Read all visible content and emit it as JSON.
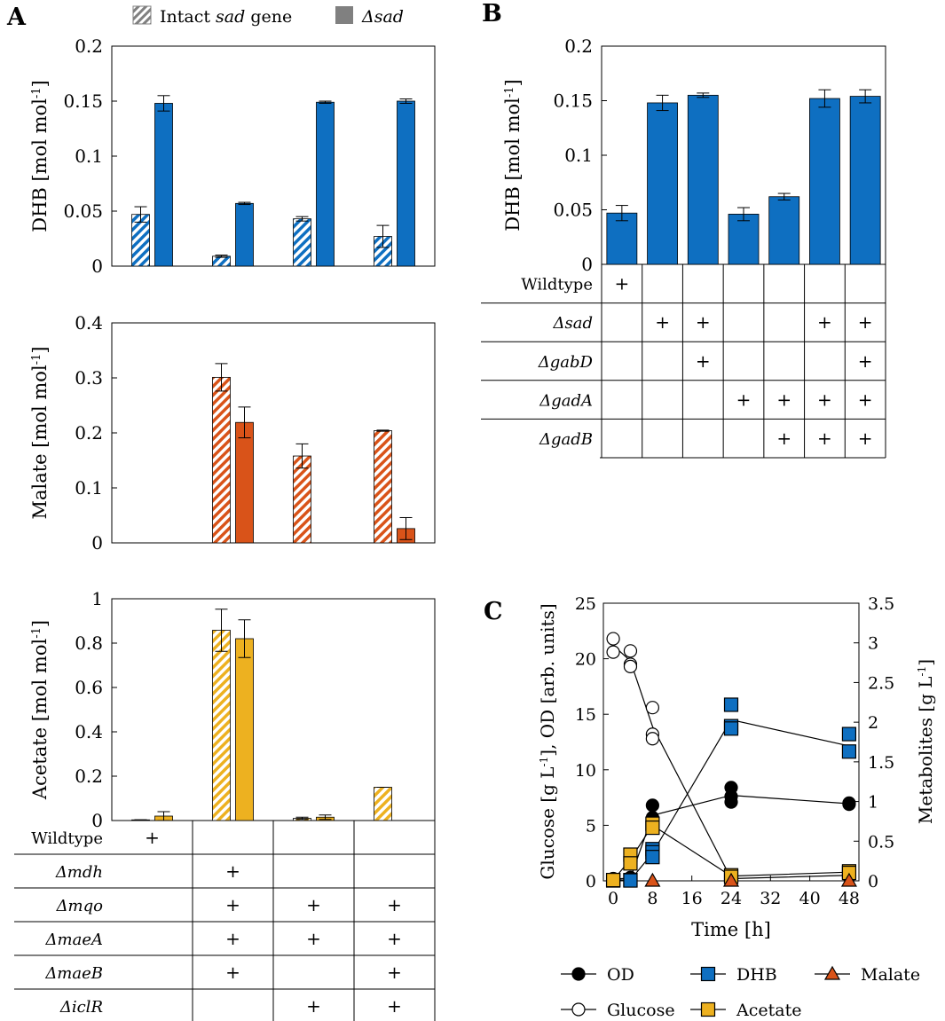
{
  "colors": {
    "dhb": "#0E6FC1",
    "malate": "#D95319",
    "acetate": "#EDB120",
    "od_marker": "#000000",
    "glucose_marker": "#ffffff",
    "legend_gray": "#808080"
  },
  "panel_labels": {
    "a": "A",
    "b": "B",
    "c": "C"
  },
  "legend_a": {
    "intact": "Intact ",
    "intact_italic": "sad",
    "intact_suffix": " gene",
    "deleted": "Δsad"
  },
  "chart_data": [
    {
      "id": "A-DHB",
      "type": "bar",
      "ylabel": "DHB [mol mol",
      "ylabel_sup": "-1",
      "ylabel_end": "]",
      "ylim": [
        0,
        0.2
      ],
      "yticks": [
        "0",
        "0.05",
        "0.1",
        "0.15",
        "0.2"
      ],
      "ytick_values": [
        0,
        0.05,
        0.1,
        0.15,
        0.2
      ],
      "series": [
        {
          "name": "Intact sad gene",
          "pattern": "hatched",
          "values": [
            0.047,
            0.009,
            0.043,
            0.027
          ],
          "errors": [
            0.007,
            0.001,
            0.002,
            0.01
          ]
        },
        {
          "name": "Δsad",
          "pattern": "solid",
          "values": [
            0.148,
            0.057,
            0.149,
            0.15
          ],
          "errors": [
            0.007,
            0.001,
            0.001,
            0.002
          ]
        }
      ]
    },
    {
      "id": "A-Malate",
      "type": "bar",
      "ylabel": "Malate [mol mol",
      "ylabel_sup": "-1",
      "ylabel_end": "]",
      "ylim": [
        0,
        0.4
      ],
      "yticks": [
        "0",
        "0.1",
        "0.2",
        "0.3",
        "0.4"
      ],
      "ytick_values": [
        0,
        0.1,
        0.2,
        0.3,
        0.4
      ],
      "series": [
        {
          "name": "Intact sad gene",
          "pattern": "hatched",
          "values": [
            0,
            0.301,
            0.158,
            0.204
          ],
          "errors": [
            0,
            0.025,
            0.022,
            0.001
          ]
        },
        {
          "name": "Δsad",
          "pattern": "solid",
          "values": [
            0,
            0.219,
            0,
            0.026
          ],
          "errors": [
            0,
            0.028,
            0,
            0.02
          ]
        }
      ]
    },
    {
      "id": "A-Acetate",
      "type": "bar",
      "ylabel": "Acetate [mol mol",
      "ylabel_sup": "-1",
      "ylabel_end": "]",
      "ylim": [
        0,
        1
      ],
      "yticks": [
        "0",
        "0.2",
        "0.4",
        "0.6",
        "0.8",
        "1"
      ],
      "ytick_values": [
        0,
        0.2,
        0.4,
        0.6,
        0.8,
        1
      ],
      "series": [
        {
          "name": "Intact sad gene",
          "pattern": "hatched",
          "values": [
            0.003,
            0.858,
            0.01,
            0.15
          ],
          "errors": [
            0,
            0.095,
            0.005,
            0
          ]
        },
        {
          "name": "Δsad",
          "pattern": "solid",
          "values": [
            0.02,
            0.82,
            0.015,
            0
          ],
          "errors": [
            0.02,
            0.085,
            0.01,
            0
          ]
        }
      ]
    },
    {
      "id": "B-DHB",
      "type": "bar",
      "ylabel": "DHB [mol mol",
      "ylabel_sup": "-1",
      "ylabel_end": "]",
      "ylim": [
        0,
        0.2
      ],
      "yticks": [
        "0",
        "0.05",
        "0.1",
        "0.15",
        "0.2"
      ],
      "ytick_values": [
        0,
        0.05,
        0.1,
        0.15,
        0.2
      ],
      "values": [
        0.047,
        0.148,
        0.155,
        0.046,
        0.062,
        0.152,
        0.154
      ],
      "errors": [
        0.007,
        0.007,
        0.002,
        0.006,
        0.003,
        0.008,
        0.006
      ]
    },
    {
      "id": "C",
      "type": "scatter",
      "xlabel": "Time [h]",
      "ylabel_left": "Glucose [g L",
      "ylabel_left_sup": "-1",
      "ylabel_left_end": "], OD [arb. units]",
      "ylabel_right": "Metabolites [g L",
      "ylabel_right_sup": "-1",
      "ylabel_right_end": "]",
      "xlim": [
        -2,
        50
      ],
      "ylim_left": [
        0,
        25
      ],
      "ylim_right": [
        0,
        3.5
      ],
      "xticks": [
        "0",
        "8",
        "16",
        "24",
        "32",
        "40",
        "48"
      ],
      "xtick_values": [
        0,
        8,
        16,
        24,
        32,
        40,
        48
      ],
      "yticks_left": [
        "0",
        "5",
        "10",
        "15",
        "20",
        "25"
      ],
      "ytick_left_values": [
        0,
        5,
        10,
        15,
        20,
        25
      ],
      "yticks_right": [
        "0",
        "0.5",
        "1",
        "1.5",
        "2",
        "2.5",
        "3",
        "3.5"
      ],
      "ytick_right_values": [
        0,
        0.5,
        1,
        1.5,
        2,
        2.5,
        3,
        3.5
      ],
      "series": [
        {
          "name": "OD",
          "axis": "left",
          "marker": "circle",
          "fill": "#000000",
          "points": [
            [
              0,
              0.2
            ],
            [
              0,
              0.1
            ],
            [
              3.5,
              0.3
            ],
            [
              3.5,
              0.2
            ],
            [
              8,
              6.8
            ],
            [
              8,
              5.7
            ],
            [
              8,
              5.3
            ],
            [
              24,
              8.4
            ],
            [
              24,
              7.6
            ],
            [
              24,
              7.1
            ],
            [
              48,
              6.9
            ],
            [
              48,
              7.0
            ]
          ],
          "line": [
            [
              0,
              0.15
            ],
            [
              3.5,
              0.25
            ],
            [
              8,
              5.9
            ],
            [
              24,
              7.7
            ],
            [
              48,
              6.95
            ]
          ]
        },
        {
          "name": "Glucose",
          "axis": "left",
          "marker": "circle",
          "fill": "#ffffff",
          "points": [
            [
              0,
              21.8
            ],
            [
              0,
              20.6
            ],
            [
              3.5,
              20.7
            ],
            [
              3.5,
              19.5
            ],
            [
              3.5,
              19.3
            ],
            [
              8,
              15.6
            ],
            [
              8,
              13.2
            ],
            [
              8,
              12.8
            ],
            [
              24,
              0.1
            ],
            [
              24,
              0.3
            ],
            [
              48,
              0.4
            ],
            [
              48,
              0.6
            ]
          ],
          "line": [
            [
              0,
              21.2
            ],
            [
              3.5,
              19.8
            ],
            [
              8,
              13.9
            ],
            [
              24,
              0.2
            ],
            [
              48,
              0.5
            ]
          ]
        },
        {
          "name": "DHB",
          "axis": "right",
          "marker": "square",
          "fill": "#0E6FC1",
          "points": [
            [
              0,
              0.01
            ],
            [
              0,
              0.005
            ],
            [
              3.5,
              0.01
            ],
            [
              3.5,
              0.005
            ],
            [
              8,
              0.4
            ],
            [
              8,
              0.36
            ],
            [
              8,
              0.3
            ],
            [
              24,
              2.22
            ],
            [
              24,
              1.95
            ],
            [
              24,
              1.92
            ],
            [
              48,
              1.85
            ],
            [
              48,
              1.63
            ]
          ],
          "line": [
            [
              0,
              0.01
            ],
            [
              3.5,
              0.01
            ],
            [
              8,
              0.35
            ],
            [
              24,
              2.03
            ],
            [
              48,
              1.7
            ]
          ]
        },
        {
          "name": "Acetate",
          "axis": "right",
          "marker": "square",
          "fill": "#EDB120",
          "points": [
            [
              0,
              0.01
            ],
            [
              3.5,
              0.33
            ],
            [
              3.5,
              0.22
            ],
            [
              8,
              0.72
            ],
            [
              8,
              0.67
            ],
            [
              24,
              0.07
            ],
            [
              24,
              0.05
            ],
            [
              48,
              0.12
            ],
            [
              48,
              0.1
            ]
          ],
          "line": [
            [
              0,
              0.01
            ],
            [
              3.5,
              0.27
            ],
            [
              8,
              0.7
            ],
            [
              24,
              0.06
            ],
            [
              48,
              0.11
            ]
          ]
        },
        {
          "name": "Malate",
          "axis": "right",
          "marker": "triangle",
          "fill": "#D95319",
          "points": [
            [
              8,
              0.0
            ],
            [
              24,
              0.0
            ],
            [
              48,
              0.0
            ]
          ],
          "line": []
        }
      ]
    }
  ],
  "table_a": {
    "rows": [
      {
        "label": "Wildtype",
        "italic": false,
        "marks": [
          "+",
          "",
          "",
          ""
        ]
      },
      {
        "label": "Δmdh",
        "italic": true,
        "marks": [
          "",
          "+",
          "",
          ""
        ]
      },
      {
        "label": "Δmqo",
        "italic": true,
        "marks": [
          "",
          "+",
          "+",
          "+"
        ]
      },
      {
        "label": "ΔmaeA",
        "italic": true,
        "marks": [
          "",
          "+",
          "+",
          "+"
        ]
      },
      {
        "label": "ΔmaeB",
        "italic": true,
        "marks": [
          "",
          "+",
          "",
          "+"
        ]
      },
      {
        "label": "ΔiclR",
        "italic": true,
        "marks": [
          "",
          "",
          "+",
          "+"
        ]
      }
    ]
  },
  "table_b": {
    "rows": [
      {
        "label": "Wildtype",
        "italic": false,
        "marks": [
          "+",
          "",
          "",
          "",
          "",
          "",
          ""
        ]
      },
      {
        "label": "Δsad",
        "italic": true,
        "marks": [
          "",
          "+",
          "+",
          "",
          "",
          "+",
          "+"
        ]
      },
      {
        "label": "ΔgabD",
        "italic": true,
        "marks": [
          "",
          "",
          "+",
          "",
          "",
          "",
          "+"
        ]
      },
      {
        "label": "ΔgadA",
        "italic": true,
        "marks": [
          "",
          "",
          "",
          "+",
          "+",
          "+",
          "+"
        ]
      },
      {
        "label": "ΔgadB",
        "italic": true,
        "marks": [
          "",
          "",
          "",
          "",
          "+",
          "+",
          "+"
        ]
      }
    ]
  },
  "legend_c": [
    "OD",
    "DHB",
    "Malate",
    "Glucose",
    "Acetate"
  ]
}
